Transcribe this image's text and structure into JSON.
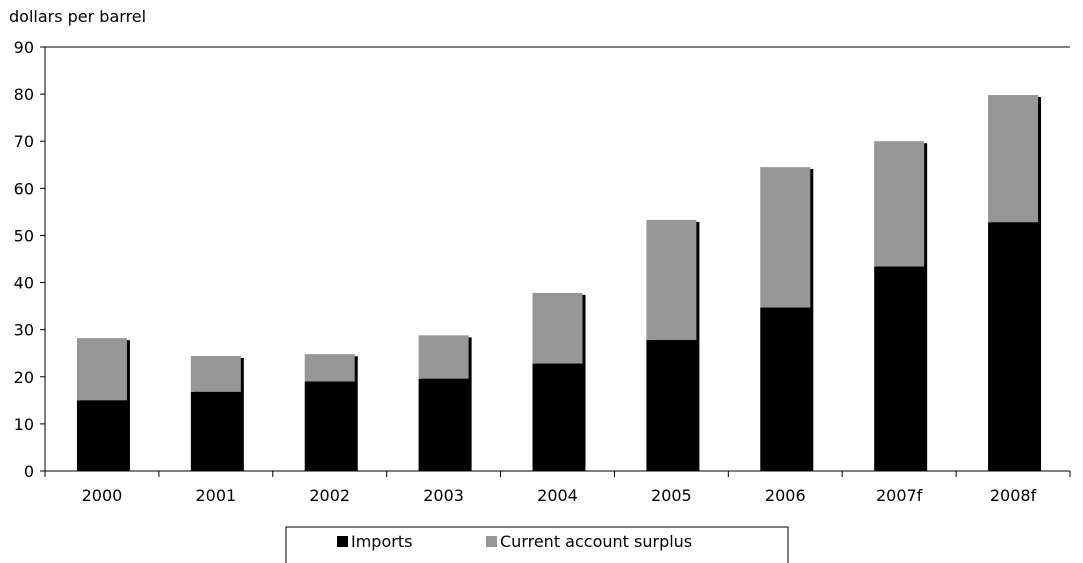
{
  "chart_data": {
    "type": "bar",
    "stacked": true,
    "ylabel": "dollars per barrel",
    "ylim": [
      0,
      90
    ],
    "yticks": [
      0,
      10,
      20,
      30,
      40,
      50,
      60,
      70,
      80,
      90
    ],
    "categories": [
      "2000",
      "2001",
      "2002",
      "2003",
      "2004",
      "2005",
      "2006",
      "2007f",
      "2008f"
    ],
    "series": [
      {
        "name": "Imports",
        "color": "#000000",
        "values": [
          15.0,
          16.8,
          19.0,
          19.6,
          22.8,
          27.8,
          34.7,
          43.4,
          52.8
        ]
      },
      {
        "name": "Current account surplus",
        "color": "#969696",
        "values": [
          13.2,
          7.6,
          5.8,
          9.2,
          15.0,
          25.5,
          29.8,
          26.6,
          27.0
        ]
      }
    ],
    "grid": false,
    "legend_position": "bottom"
  }
}
